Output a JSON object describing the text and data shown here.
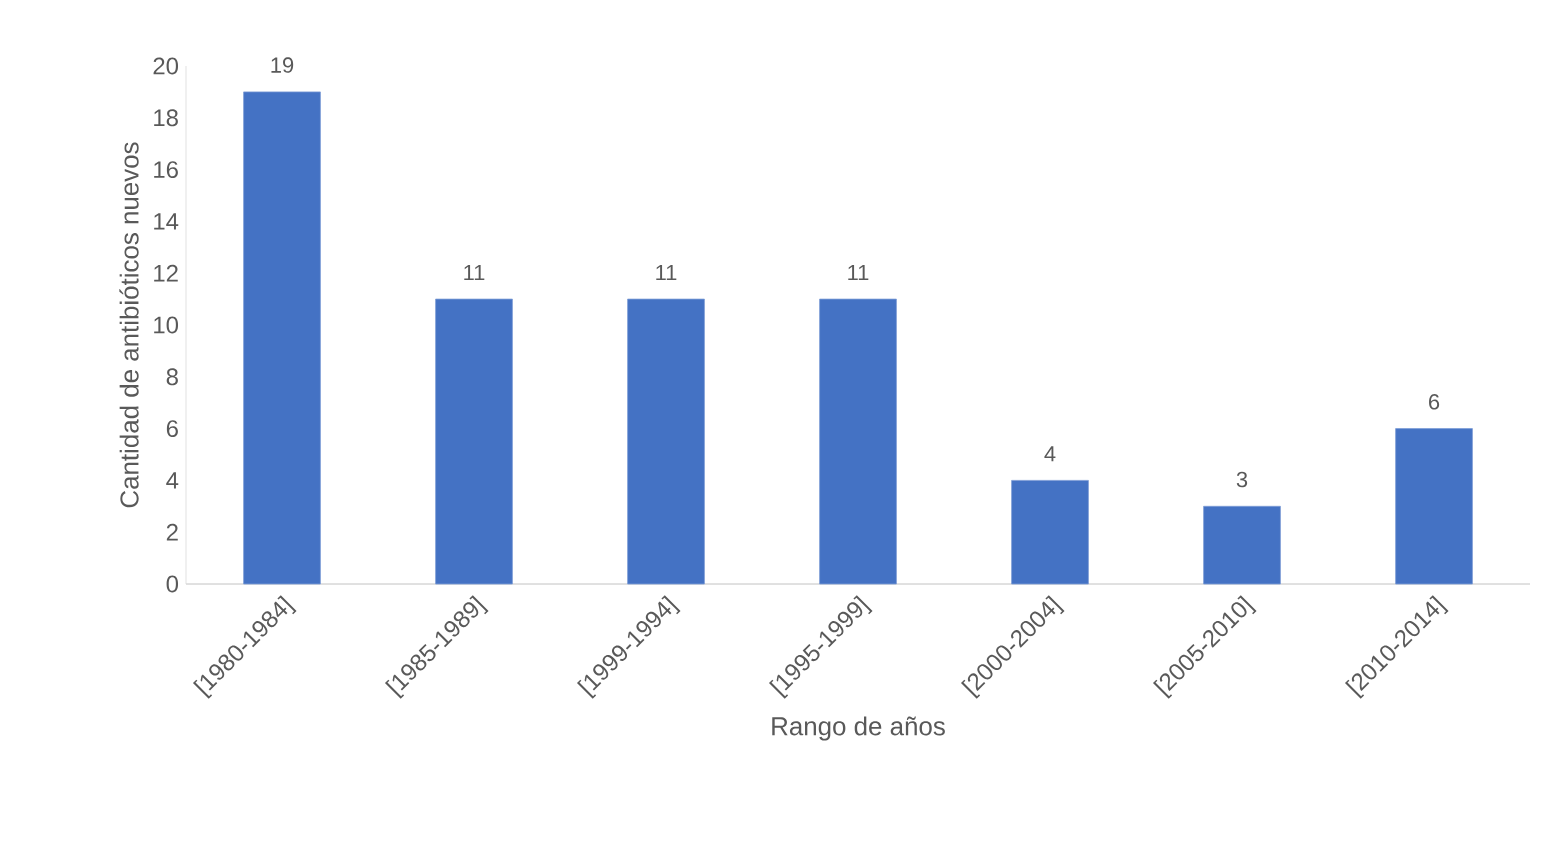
{
  "chart_data": {
    "type": "bar",
    "xlabel": "Rango de años",
    "ylabel": "Cantidad de antibióticos nuevos",
    "categories": [
      "[1980-1984]",
      "[1985-1989]",
      "[1999-1994]",
      "[1995-1999]",
      "[2000-2004]",
      "[2005-2010]",
      "[2010-2014]"
    ],
    "values": [
      19,
      11,
      11,
      11,
      4,
      3,
      6
    ],
    "color": "#4472c4",
    "ylim": [
      0,
      20
    ],
    "yticks": [
      0,
      2,
      4,
      6,
      8,
      10,
      12,
      14,
      16,
      18,
      20
    ],
    "data_labels": true,
    "grid": false
  }
}
